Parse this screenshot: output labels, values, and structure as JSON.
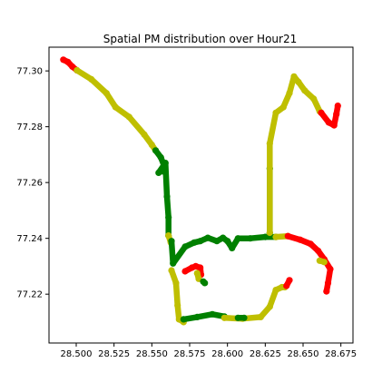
{
  "chart_data": {
    "type": "scatter",
    "title": "Spatial PM distribution over Hour21",
    "xlabel": "",
    "ylabel": "",
    "xlim": [
      28.482,
      28.683
    ],
    "ylim": [
      77.2025,
      77.3085
    ],
    "x_ticks": [
      28.5,
      28.525,
      28.55,
      28.575,
      28.6,
      28.625,
      28.65,
      28.675
    ],
    "x_tick_labels": [
      "28.500",
      "28.525",
      "28.550",
      "28.575",
      "28.600",
      "28.625",
      "28.650",
      "28.675"
    ],
    "y_ticks": [
      77.22,
      77.24,
      77.26,
      77.28,
      77.3
    ],
    "y_tick_labels": [
      "77.22",
      "77.24",
      "77.26",
      "77.28",
      "77.30"
    ],
    "grid": false,
    "legend": "none",
    "colors": {
      "red": "#ff0000",
      "yellow": "#bfbf00",
      "green": "#008000"
    },
    "segments": [
      {
        "color": "red",
        "points": [
          [
            28.4915,
            77.304
          ],
          [
            28.4945,
            77.3032
          ],
          [
            28.4975,
            77.3015
          ],
          [
            28.5005,
            77.3002
          ]
        ]
      },
      {
        "color": "yellow",
        "points": [
          [
            28.5005,
            77.3002
          ],
          [
            28.51,
            77.297
          ],
          [
            28.52,
            77.292
          ],
          [
            28.526,
            77.287
          ],
          [
            28.535,
            77.2835
          ],
          [
            28.545,
            77.2772
          ],
          [
            28.55,
            77.2735
          ],
          [
            28.5525,
            77.2715
          ]
        ]
      },
      {
        "color": "green",
        "points": [
          [
            28.5525,
            77.2715
          ],
          [
            28.556,
            77.269
          ],
          [
            28.5585,
            77.2655
          ],
          [
            28.5575,
            77.264
          ]
        ]
      },
      {
        "color": "green",
        "points": [
          [
            28.5545,
            77.2635
          ],
          [
            28.559,
            77.267
          ],
          [
            28.56,
            77.255
          ],
          [
            28.561,
            77.2475
          ],
          [
            28.561,
            77.241
          ]
        ]
      },
      {
        "color": "yellow",
        "points": [
          [
            28.561,
            77.241
          ],
          [
            28.5625,
            77.2385
          ]
        ]
      },
      {
        "color": "green",
        "points": [
          [
            28.563,
            77.239
          ],
          [
            28.564,
            77.231
          ],
          [
            28.572,
            77.237
          ],
          [
            28.578,
            77.2385
          ],
          [
            28.582,
            77.239
          ],
          [
            28.587,
            77.2402
          ],
          [
            28.593,
            77.239
          ],
          [
            28.597,
            77.2402
          ],
          [
            28.6,
            77.239
          ],
          [
            28.603,
            77.2365
          ],
          [
            28.607,
            77.24
          ],
          [
            28.615,
            77.24
          ],
          [
            28.625,
            77.2405
          ],
          [
            28.632,
            77.2405
          ]
        ]
      },
      {
        "color": "yellow",
        "points": [
          [
            28.563,
            77.2285
          ],
          [
            28.566,
            77.224
          ],
          [
            28.567,
            77.216
          ],
          [
            28.568,
            77.211
          ],
          [
            28.571,
            77.21
          ]
        ]
      },
      {
        "color": "green",
        "points": [
          [
            28.571,
            77.211
          ],
          [
            28.58,
            77.2118
          ],
          [
            28.59,
            77.2128
          ],
          [
            28.598,
            77.212
          ]
        ]
      },
      {
        "color": "yellow",
        "points": [
          [
            28.598,
            77.2115
          ],
          [
            28.61,
            77.2112
          ],
          [
            28.622,
            77.2118
          ],
          [
            28.628,
            77.2155
          ],
          [
            28.632,
            77.2215
          ],
          [
            28.636,
            77.2225
          ],
          [
            28.638,
            77.2225
          ]
        ]
      },
      {
        "color": "green",
        "points": [
          [
            28.607,
            77.2115
          ],
          [
            28.611,
            77.2115
          ]
        ]
      },
      {
        "color": "red",
        "points": [
          [
            28.639,
            77.223
          ],
          [
            28.641,
            77.225
          ]
        ]
      },
      {
        "color": "red",
        "points": [
          [
            28.572,
            77.2282
          ],
          [
            28.5765,
            77.2295
          ],
          [
            28.579,
            77.23
          ],
          [
            28.582,
            77.2295
          ],
          [
            28.5825,
            77.227
          ]
        ]
      },
      {
        "color": "yellow",
        "points": [
          [
            28.58,
            77.2275
          ],
          [
            28.581,
            77.2255
          ]
        ]
      },
      {
        "color": "green",
        "points": [
          [
            28.584,
            77.2245
          ],
          [
            28.585,
            77.224
          ]
        ]
      },
      {
        "color": "green",
        "points": [
          [
            28.628,
            77.265
          ],
          [
            28.628,
            77.242
          ]
        ]
      },
      {
        "color": "yellow",
        "points": [
          [
            28.628,
            77.242
          ],
          [
            28.628,
            77.274
          ],
          [
            28.632,
            77.285
          ],
          [
            28.637,
            77.287
          ],
          [
            28.641,
            77.292
          ],
          [
            28.644,
            77.298
          ],
          [
            28.647,
            77.296
          ],
          [
            28.651,
            77.293
          ],
          [
            28.657,
            77.29
          ],
          [
            28.661,
            77.2855
          ]
        ]
      },
      {
        "color": "red",
        "points": [
          [
            28.662,
            77.285
          ],
          [
            28.667,
            77.2815
          ],
          [
            28.6705,
            77.2805
          ],
          [
            28.672,
            77.2845
          ],
          [
            28.673,
            77.2875
          ]
        ]
      },
      {
        "color": "yellow",
        "points": [
          [
            28.632,
            77.2405
          ],
          [
            28.64,
            77.2408
          ]
        ]
      },
      {
        "color": "red",
        "points": [
          [
            28.64,
            77.2408
          ],
          [
            28.648,
            77.2395
          ],
          [
            28.655,
            77.238
          ],
          [
            28.66,
            77.2355
          ],
          [
            28.664,
            77.2325
          ],
          [
            28.668,
            77.229
          ],
          [
            28.6665,
            77.224
          ],
          [
            28.6655,
            77.221
          ]
        ]
      },
      {
        "color": "yellow",
        "points": [
          [
            28.661,
            77.232
          ],
          [
            28.664,
            77.2315
          ]
        ]
      }
    ]
  }
}
